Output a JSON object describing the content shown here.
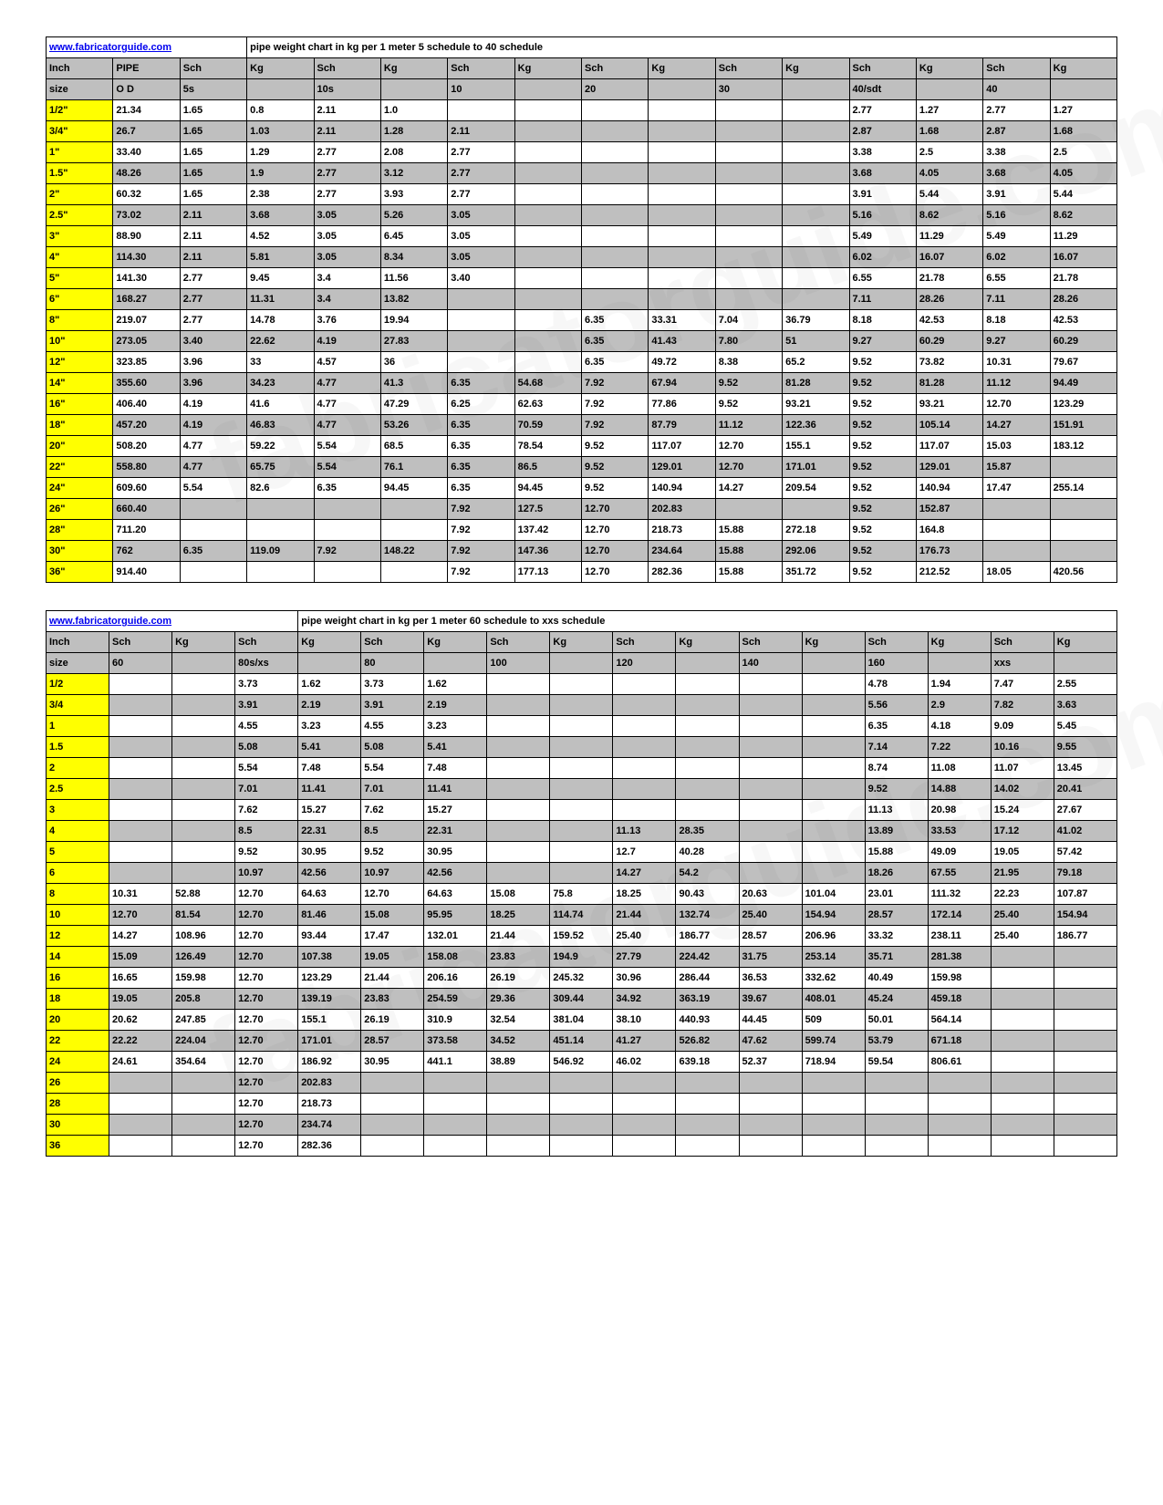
{
  "table1": {
    "link": "www.fabricatorguide.com",
    "title": "pipe weight chart in kg per 1 meter  5 schedule to 40 schedule",
    "headers": [
      "Inch\nsize",
      "PIPE\nO D",
      "Sch\n5s",
      "Kg",
      "Sch\n10s",
      "Kg",
      "Sch\n10",
      "Kg",
      "Sch\n20",
      "Kg",
      "Sch\n30",
      "Kg",
      "Sch\n40/sdt",
      "Kg",
      "Sch\n40",
      "Kg"
    ],
    "rows": [
      [
        "1/2\"",
        "21.34",
        "1.65",
        "0.8",
        "2.11",
        "1.0",
        "",
        "",
        "",
        "",
        "",
        "",
        "2.77",
        "1.27",
        "2.77",
        "1.27"
      ],
      [
        "3/4\"",
        "26.7",
        "1.65",
        "1.03",
        "2.11",
        "1.28",
        "2.11",
        "",
        "",
        "",
        "",
        "",
        "2.87",
        "1.68",
        "2.87",
        "1.68"
      ],
      [
        "1\"",
        "33.40",
        "1.65",
        "1.29",
        "2.77",
        "2.08",
        "2.77",
        "",
        "",
        "",
        "",
        "",
        "3.38",
        "2.5",
        "3.38",
        "2.5"
      ],
      [
        "1.5\"",
        "48.26",
        "1.65",
        "1.9",
        "2.77",
        "3.12",
        "2.77",
        "",
        "",
        "",
        "",
        "",
        "3.68",
        "4.05",
        "3.68",
        "4.05"
      ],
      [
        "2\"",
        "60.32",
        "1.65",
        "2.38",
        "2.77",
        "3.93",
        "2.77",
        "",
        "",
        "",
        "",
        "",
        "3.91",
        "5.44",
        "3.91",
        "5.44"
      ],
      [
        "2.5\"",
        "73.02",
        "2.11",
        "3.68",
        "3.05",
        "5.26",
        "3.05",
        "",
        "",
        "",
        "",
        "",
        "5.16",
        "8.62",
        "5.16",
        "8.62"
      ],
      [
        "3\"",
        "88.90",
        "2.11",
        "4.52",
        "3.05",
        "6.45",
        "3.05",
        "",
        "",
        "",
        "",
        "",
        "5.49",
        "11.29",
        "5.49",
        "11.29"
      ],
      [
        "4\"",
        "114.30",
        "2.11",
        "5.81",
        "3.05",
        "8.34",
        "3.05",
        "",
        "",
        "",
        "",
        "",
        "6.02",
        "16.07",
        "6.02",
        "16.07"
      ],
      [
        "5\"",
        "141.30",
        "2.77",
        "9.45",
        "3.4",
        "11.56",
        "3.40",
        "",
        "",
        "",
        "",
        "",
        "6.55",
        "21.78",
        "6.55",
        "21.78"
      ],
      [
        "6\"",
        "168.27",
        "2.77",
        "11.31",
        "3.4",
        "13.82",
        "",
        "",
        "",
        "",
        "",
        "",
        "7.11",
        "28.26",
        "7.11",
        "28.26"
      ],
      [
        "8\"",
        "219.07",
        "2.77",
        "14.78",
        "3.76",
        "19.94",
        "",
        "",
        "6.35",
        "33.31",
        "7.04",
        "36.79",
        "8.18",
        "42.53",
        "8.18",
        "42.53"
      ],
      [
        "10\"",
        "273.05",
        "3.40",
        "22.62",
        "4.19",
        "27.83",
        "",
        "",
        "6.35",
        "41.43",
        "7.80",
        "51",
        "9.27",
        "60.29",
        "9.27",
        "60.29"
      ],
      [
        "12\"",
        "323.85",
        "3.96",
        "33",
        "4.57",
        "36",
        "",
        "",
        "6.35",
        "49.72",
        "8.38",
        "65.2",
        "9.52",
        "73.82",
        "10.31",
        "79.67"
      ],
      [
        "14\"",
        "355.60",
        "3.96",
        "34.23",
        "4.77",
        "41.3",
        "6.35",
        "54.68",
        "7.92",
        "67.94",
        "9.52",
        "81.28",
        "9.52",
        "81.28",
        "11.12",
        "94.49"
      ],
      [
        "16\"",
        "406.40",
        "4.19",
        "41.6",
        "4.77",
        "47.29",
        "6.25",
        "62.63",
        "7.92",
        "77.86",
        "9.52",
        "93.21",
        "9.52",
        "93.21",
        "12.70",
        "123.29"
      ],
      [
        "18\"",
        "457.20",
        "4.19",
        "46.83",
        "4.77",
        "53.26",
        "6.35",
        "70.59",
        "7.92",
        "87.79",
        "11.12",
        "122.36",
        "9.52",
        "105.14",
        "14.27",
        "151.91"
      ],
      [
        "20\"",
        "508.20",
        "4.77",
        "59.22",
        "5.54",
        "68.5",
        "6.35",
        "78.54",
        "9.52",
        "117.07",
        "12.70",
        "155.1",
        "9.52",
        "117.07",
        "15.03",
        "183.12"
      ],
      [
        "22\"",
        "558.80",
        "4.77",
        "65.75",
        "5.54",
        "76.1",
        "6.35",
        "86.5",
        "9.52",
        "129.01",
        "12.70",
        "171.01",
        "9.52",
        "129.01",
        "15.87",
        ""
      ],
      [
        "24\"",
        "609.60",
        "5.54",
        "82.6",
        "6.35",
        "94.45",
        "6.35",
        "94.45",
        "9.52",
        "140.94",
        "14.27",
        "209.54",
        "9.52",
        "140.94",
        "17.47",
        "255.14"
      ],
      [
        "26\"",
        "660.40",
        "",
        "",
        "",
        "",
        "7.92",
        "127.5",
        "12.70",
        "202.83",
        "",
        "",
        "9.52",
        "152.87",
        "",
        ""
      ],
      [
        "28\"",
        "711.20",
        "",
        "",
        "",
        "",
        "7.92",
        "137.42",
        "12.70",
        "218.73",
        "15.88",
        "272.18",
        "9.52",
        "164.8",
        "",
        ""
      ],
      [
        "30\"",
        "762",
        "6.35",
        "119.09",
        "7.92",
        "148.22",
        "7.92",
        "147.36",
        "12.70",
        "234.64",
        "15.88",
        "292.06",
        "9.52",
        "176.73",
        "",
        ""
      ],
      [
        "36\"",
        "914.40",
        "",
        "",
        "",
        "",
        "7.92",
        "177.13",
        "12.70",
        "282.36",
        "15.88",
        "351.72",
        "9.52",
        "212.52",
        "18.05",
        "420.56"
      ]
    ]
  },
  "table2": {
    "link": "www.fabricatorguide.com",
    "title": "pipe weight chart in kg per 1 meter  60 schedule to xxs schedule",
    "headers": [
      "Inch\nsize",
      "Sch\n60",
      "Kg",
      "Sch\n80s/xs",
      "Kg",
      "Sch\n80",
      "Kg",
      "Sch\n100",
      "Kg",
      "Sch\n120",
      "Kg",
      "Sch\n140",
      "Kg",
      "Sch\n160",
      "Kg",
      "Sch\nxxs",
      "Kg"
    ],
    "rows": [
      [
        "1/2",
        "",
        "",
        "3.73",
        "1.62",
        "3.73",
        "1.62",
        "",
        "",
        "",
        "",
        "",
        "",
        "4.78",
        "1.94",
        "7.47",
        "2.55"
      ],
      [
        "3/4",
        "",
        "",
        "3.91",
        "2.19",
        "3.91",
        "2.19",
        "",
        "",
        "",
        "",
        "",
        "",
        "5.56",
        "2.9",
        "7.82",
        "3.63"
      ],
      [
        "1",
        "",
        "",
        "4.55",
        "3.23",
        "4.55",
        "3.23",
        "",
        "",
        "",
        "",
        "",
        "",
        "6.35",
        "4.18",
        "9.09",
        "5.45"
      ],
      [
        "1.5",
        "",
        "",
        "5.08",
        "5.41",
        "5.08",
        "5.41",
        "",
        "",
        "",
        "",
        "",
        "",
        "7.14",
        "7.22",
        "10.16",
        "9.55"
      ],
      [
        "2",
        "",
        "",
        "5.54",
        "7.48",
        "5.54",
        "7.48",
        "",
        "",
        "",
        "",
        "",
        "",
        "8.74",
        "11.08",
        "11.07",
        "13.45"
      ],
      [
        "2.5",
        "",
        "",
        "7.01",
        "11.41",
        "7.01",
        "11.41",
        "",
        "",
        "",
        "",
        "",
        "",
        "9.52",
        "14.88",
        "14.02",
        "20.41"
      ],
      [
        "3",
        "",
        "",
        "7.62",
        "15.27",
        "7.62",
        "15.27",
        "",
        "",
        "",
        "",
        "",
        "",
        "11.13",
        "20.98",
        "15.24",
        "27.67"
      ],
      [
        "4",
        "",
        "",
        "8.5",
        "22.31",
        "8.5",
        "22.31",
        "",
        "",
        "11.13",
        "28.35",
        "",
        "",
        "13.89",
        "33.53",
        "17.12",
        "41.02"
      ],
      [
        "5",
        "",
        "",
        "9.52",
        "30.95",
        "9.52",
        "30.95",
        "",
        "",
        "12.7",
        "40.28",
        "",
        "",
        "15.88",
        "49.09",
        "19.05",
        "57.42"
      ],
      [
        "6",
        "",
        "",
        "10.97",
        "42.56",
        "10.97",
        "42.56",
        "",
        "",
        "14.27",
        "54.2",
        "",
        "",
        "18.26",
        "67.55",
        "21.95",
        "79.18"
      ],
      [
        "8",
        "10.31",
        "52.88",
        "12.70",
        "64.63",
        "12.70",
        "64.63",
        "15.08",
        "75.8",
        "18.25",
        "90.43",
        "20.63",
        "101.04",
        "23.01",
        "111.32",
        "22.23",
        "107.87"
      ],
      [
        "10",
        "12.70",
        "81.54",
        "12.70",
        "81.46",
        "15.08",
        "95.95",
        "18.25",
        "114.74",
        "21.44",
        "132.74",
        "25.40",
        "154.94",
        "28.57",
        "172.14",
        "25.40",
        "154.94"
      ],
      [
        "12",
        "14.27",
        "108.96",
        "12.70",
        "93.44",
        "17.47",
        "132.01",
        "21.44",
        "159.52",
        "25.40",
        "186.77",
        "28.57",
        "206.96",
        "33.32",
        "238.11",
        "25.40",
        "186.77"
      ],
      [
        "14",
        "15.09",
        "126.49",
        "12.70",
        "107.38",
        "19.05",
        "158.08",
        "23.83",
        "194.9",
        "27.79",
        "224.42",
        "31.75",
        "253.14",
        "35.71",
        "281.38",
        "",
        ""
      ],
      [
        "16",
        "16.65",
        "159.98",
        "12.70",
        "123.29",
        "21.44",
        "206.16",
        "26.19",
        "245.32",
        "30.96",
        "286.44",
        "36.53",
        "332.62",
        "40.49",
        "159.98",
        "",
        ""
      ],
      [
        "18",
        "19.05",
        "205.8",
        "12.70",
        "139.19",
        "23.83",
        "254.59",
        "29.36",
        "309.44",
        "34.92",
        "363.19",
        "39.67",
        "408.01",
        "45.24",
        "459.18",
        "",
        ""
      ],
      [
        "20",
        "20.62",
        "247.85",
        "12.70",
        "155.1",
        "26.19",
        "310.9",
        "32.54",
        "381.04",
        "38.10",
        "440.93",
        "44.45",
        "509",
        "50.01",
        "564.14",
        "",
        ""
      ],
      [
        "22",
        "22.22",
        "224.04",
        "12.70",
        "171.01",
        "28.57",
        "373.58",
        "34.52",
        "451.14",
        "41.27",
        "526.82",
        "47.62",
        "599.74",
        "53.79",
        "671.18",
        "",
        ""
      ],
      [
        "24",
        "24.61",
        "354.64",
        "12.70",
        "186.92",
        "30.95",
        "441.1",
        "38.89",
        "546.92",
        "46.02",
        "639.18",
        "52.37",
        "718.94",
        "59.54",
        "806.61",
        "",
        ""
      ],
      [
        "26",
        "",
        "",
        "12.70",
        "202.83",
        "",
        "",
        "",
        "",
        "",
        "",
        "",
        "",
        "",
        "",
        "",
        ""
      ],
      [
        "28",
        "",
        "",
        "12.70",
        "218.73",
        "",
        "",
        "",
        "",
        "",
        "",
        "",
        "",
        "",
        "",
        "",
        ""
      ],
      [
        "30",
        "",
        "",
        "12.70",
        "234.74",
        "",
        "",
        "",
        "",
        "",
        "",
        "",
        "",
        "",
        "",
        "",
        ""
      ],
      [
        "36",
        "",
        "",
        "12.70",
        "282.36",
        "",
        "",
        "",
        "",
        "",
        "",
        "",
        "",
        "",
        "",
        "",
        ""
      ]
    ]
  },
  "colors": {
    "header_bg": "#bfbfbf",
    "size_bg": "#ffff00",
    "link": "#0000ee"
  }
}
